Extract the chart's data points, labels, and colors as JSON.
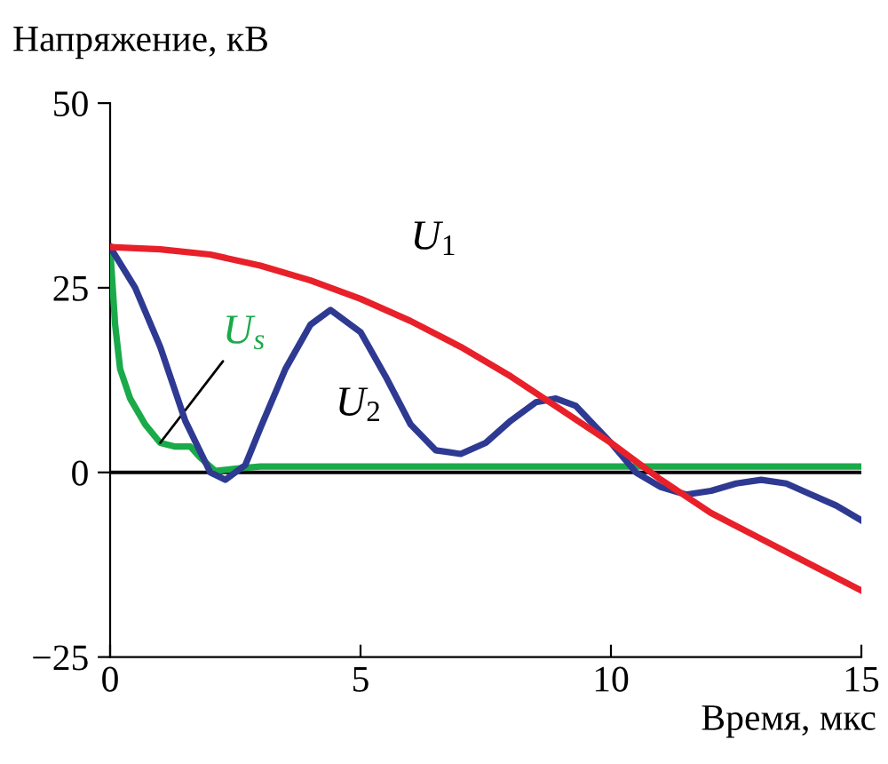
{
  "chart_data": {
    "type": "line",
    "xlabel": "Время, мкс",
    "ylabel": "Напряжение, кВ",
    "xlim": [
      0,
      15
    ],
    "ylim": [
      -25,
      50
    ],
    "xticks": [
      0,
      5,
      10,
      15
    ],
    "yticks": [
      {
        "value": -25,
        "label": "−25"
      },
      0,
      25,
      50
    ],
    "grid": false,
    "legend": false,
    "ref_lines": [
      {
        "axis": "y",
        "value": 0,
        "color": "#000000"
      }
    ],
    "series": [
      {
        "name": "U$_{1}$",
        "color": "#e8202a",
        "x": [
          0,
          1,
          2,
          3,
          4,
          5,
          6,
          7,
          8,
          9,
          10,
          11,
          12,
          13,
          14,
          15
        ],
        "values": [
          30.5,
          30.2,
          29.5,
          28,
          26,
          23.5,
          20.5,
          17,
          13,
          8.5,
          4,
          -1,
          -5.5,
          -9,
          -12.5,
          -16
        ]
      },
      {
        "name": "U$_{2}$",
        "color": "#2e3a92",
        "x": [
          0,
          0.5,
          1,
          1.5,
          2,
          2.3,
          2.7,
          3,
          3.5,
          4,
          4.4,
          5,
          5.5,
          6,
          6.5,
          7,
          7.5,
          8,
          8.5,
          8.9,
          9.3,
          10,
          10.5,
          11,
          11.5,
          12,
          12.5,
          13,
          13.5,
          14,
          14.5,
          15
        ],
        "values": [
          30.5,
          25,
          17,
          7,
          0,
          -1,
          1,
          6,
          14,
          20,
          22,
          19,
          13,
          6.5,
          3,
          2.5,
          4,
          7,
          9.5,
          10,
          9,
          4,
          0,
          -2,
          -3,
          -2.5,
          -1.5,
          -1,
          -1.5,
          -3,
          -4.5,
          -6.5
        ]
      },
      {
        "name": "U$_{s}$",
        "color": "#1aaa4a",
        "x": [
          0,
          0.1,
          0.2,
          0.4,
          0.7,
          1,
          1.3,
          1.6,
          1.8,
          2.1,
          2.5,
          3,
          15
        ],
        "values": [
          30.5,
          20,
          14,
          10,
          6.5,
          4,
          3.5,
          3.5,
          2,
          0.2,
          0.5,
          0.8,
          0.8
        ]
      }
    ]
  }
}
